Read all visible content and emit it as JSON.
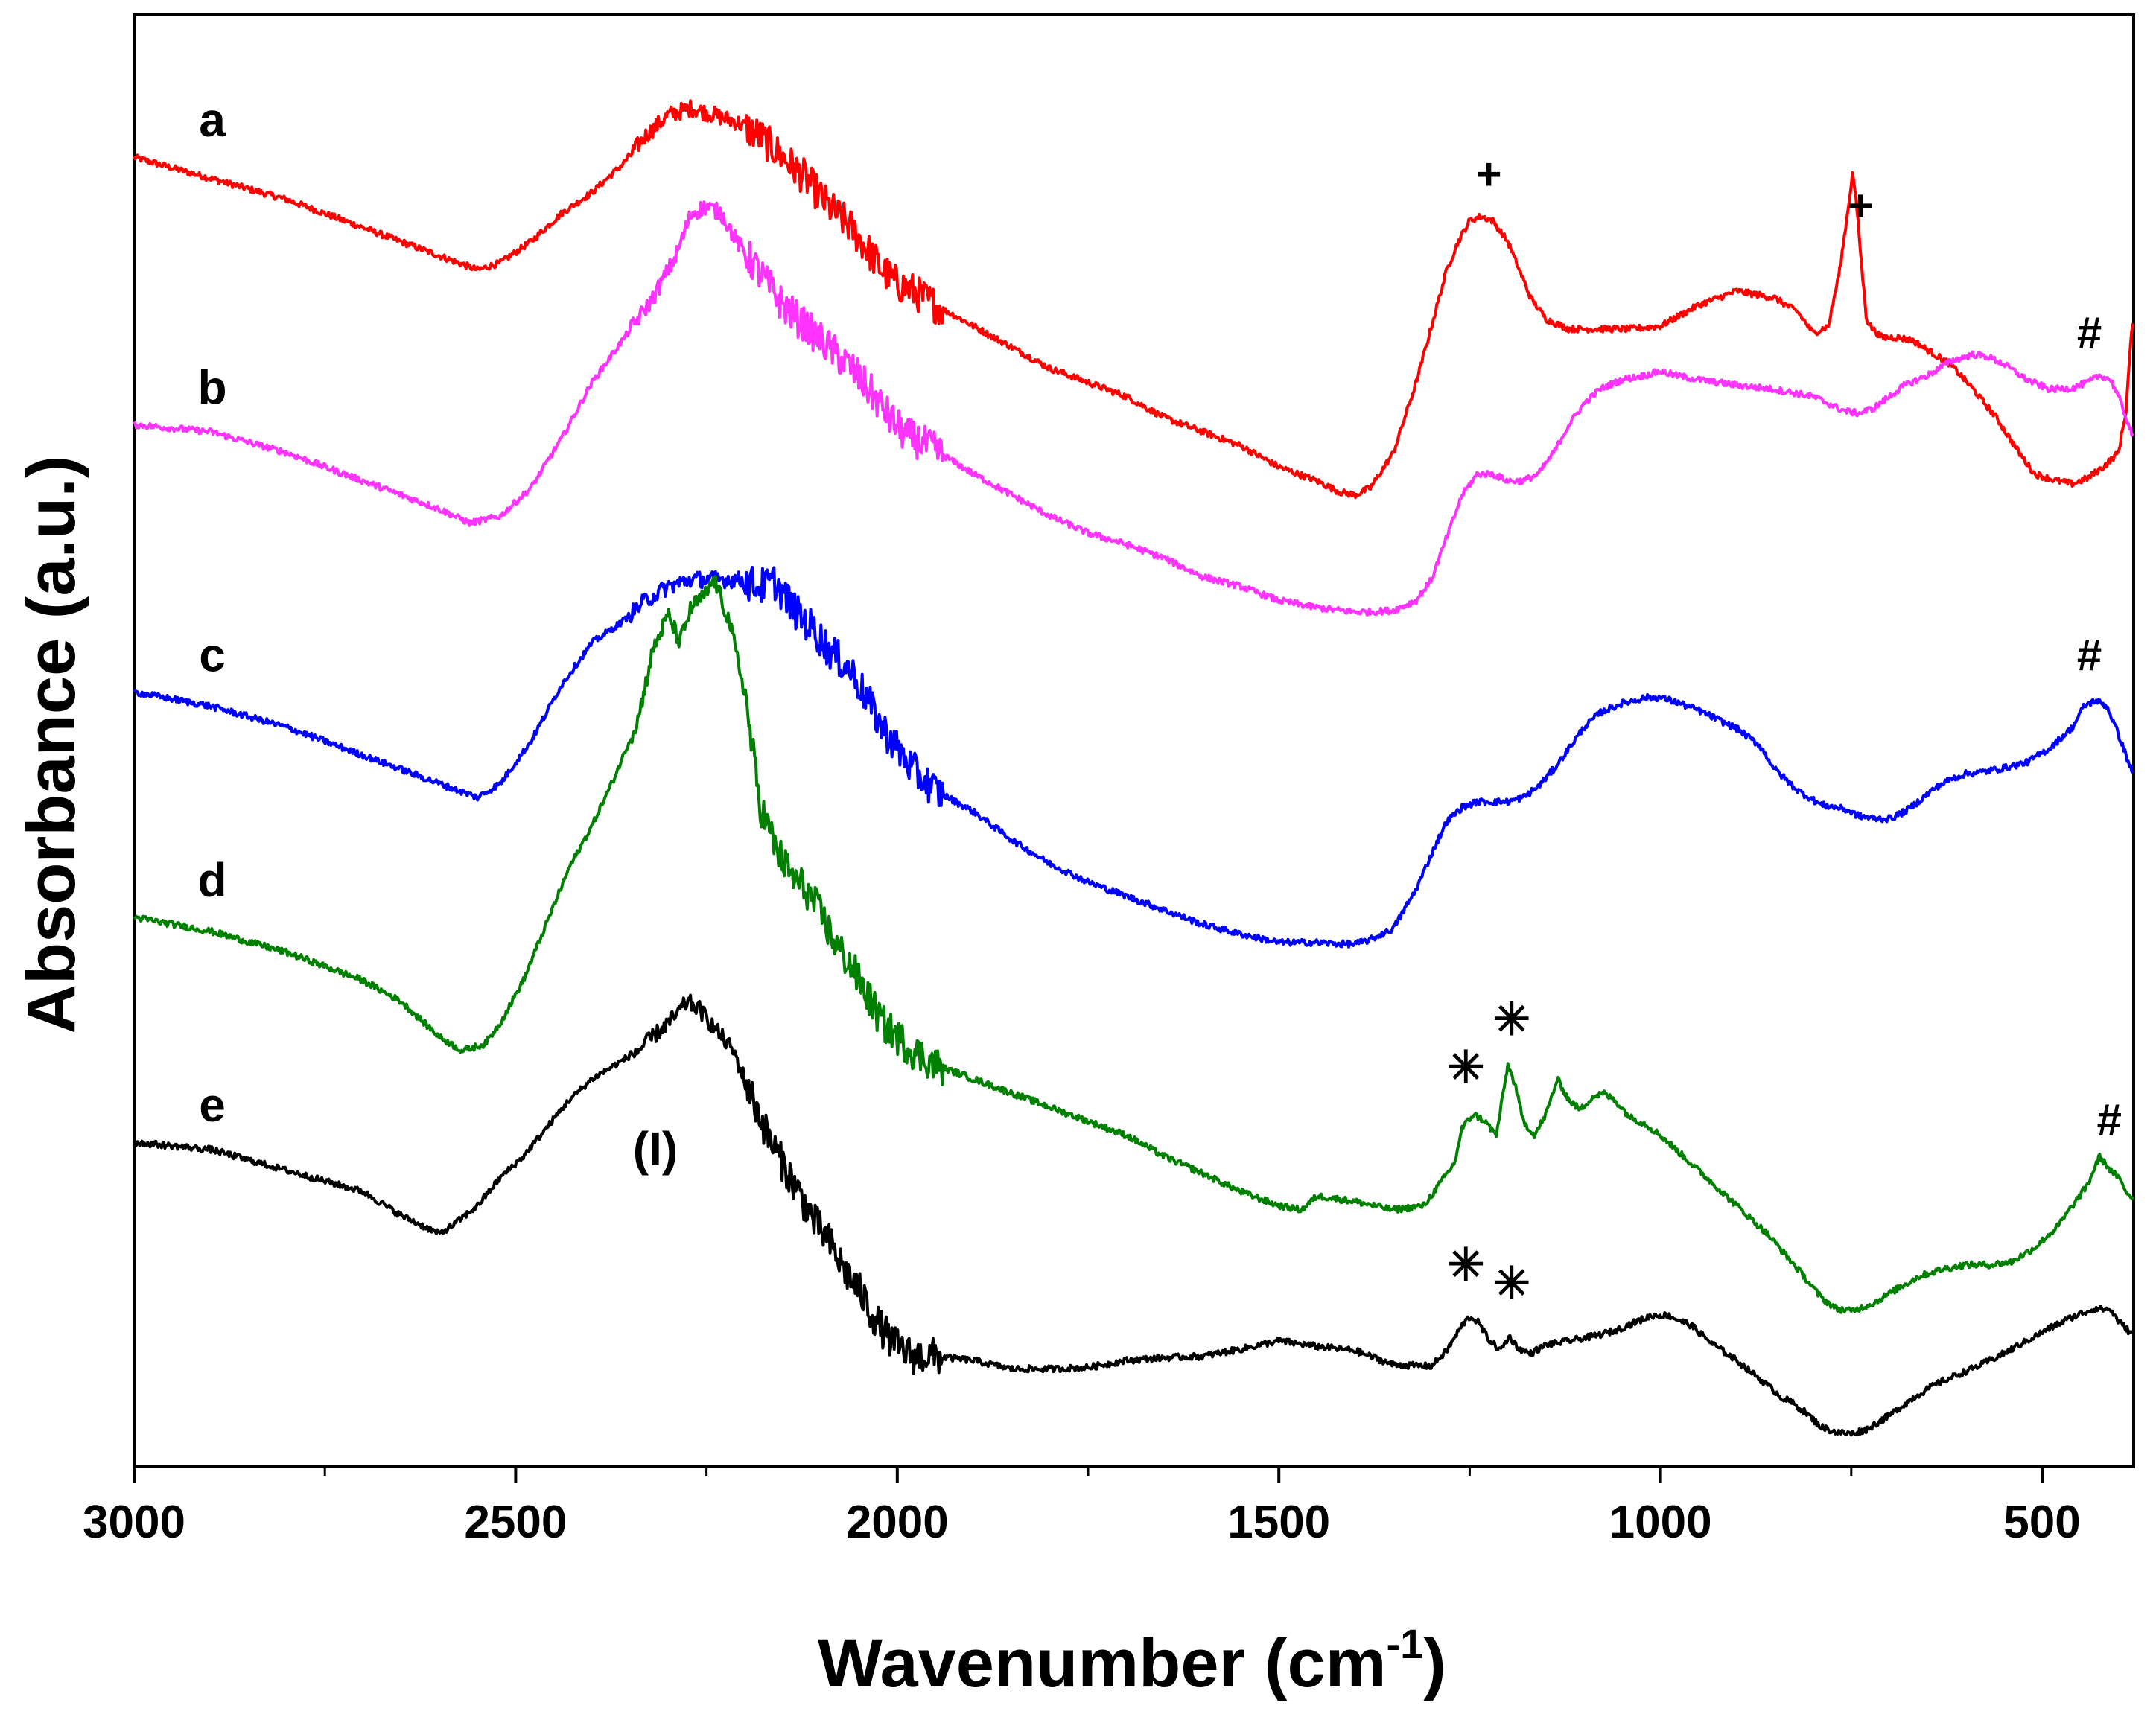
{
  "chart_data": {
    "type": "line",
    "title": "",
    "xlabel": "Wavenumber (cm",
    "xlabel_sup": "-1",
    "xlabel_close": ")",
    "ylabel": "Absorbance (a.u.)",
    "xlim": [
      3000,
      380
    ],
    "ylim": [
      0,
      100
    ],
    "xticks": [
      3000,
      2500,
      2000,
      1500,
      1000,
      500
    ],
    "yticks_shown": false,
    "legend": "none",
    "series": [
      {
        "name": "a",
        "color": "#ff0000",
        "x": [
          3000,
          2900,
          2800,
          2700,
          2600,
          2550,
          2520,
          2480,
          2440,
          2400,
          2360,
          2330,
          2300,
          2270,
          2240,
          2210,
          2180,
          2150,
          2120,
          2090,
          2060,
          2040,
          2020,
          2000,
          1980,
          1950,
          1900,
          1850,
          1800,
          1750,
          1700,
          1650,
          1600,
          1550,
          1500,
          1450,
          1420,
          1400,
          1380,
          1350,
          1320,
          1300,
          1280,
          1265,
          1250,
          1235,
          1220,
          1200,
          1185,
          1170,
          1150,
          1120,
          1080,
          1040,
          1000,
          950,
          900,
          850,
          820,
          800,
          780,
          765,
          755,
          748,
          742,
          736,
          730,
          722,
          710,
          690,
          670,
          650,
          620,
          590,
          560,
          530,
          510,
          480,
          460,
          440,
          420,
          400,
          390,
          385,
          380
        ],
        "y": [
          92,
          90.5,
          89,
          87,
          85,
          84,
          84.5,
          86,
          88,
          89.5,
          91.5,
          93.5,
          95,
          95.5,
          95,
          94.5,
          93.5,
          92,
          90.5,
          88.5,
          87,
          85.5,
          84,
          83,
          82.5,
          81.5,
          80,
          78.5,
          77,
          76,
          75,
          73.5,
          72.5,
          71.5,
          70,
          69,
          68.2,
          68,
          68.5,
          71,
          76,
          80,
          84,
          86,
          87.5,
          87.8,
          87.5,
          86,
          84,
          82,
          80.5,
          79.8,
          79.8,
          79.8,
          80,
          81.5,
          82.5,
          82,
          81,
          79.5,
          80,
          84,
          88,
          91,
          88,
          84,
          80.5,
          79.8,
          79.2,
          79.2,
          79,
          78.3,
          77.3,
          75.5,
          73.5,
          71,
          69.5,
          69,
          68.8,
          69.2,
          70,
          71,
          74,
          78,
          81
        ]
      },
      {
        "name": "b",
        "color": "#ff33ff",
        "x": [
          3000,
          2900,
          2800,
          2700,
          2600,
          2560,
          2520,
          2480,
          2440,
          2400,
          2360,
          2320,
          2290,
          2270,
          2250,
          2230,
          2210,
          2190,
          2170,
          2150,
          2120,
          2090,
          2060,
          2030,
          2010,
          1990,
          1960,
          1930,
          1900,
          1850,
          1800,
          1750,
          1700,
          1650,
          1600,
          1550,
          1500,
          1450,
          1420,
          1400,
          1380,
          1350,
          1320,
          1300,
          1280,
          1260,
          1240,
          1220,
          1200,
          1180,
          1160,
          1140,
          1120,
          1100,
          1080,
          1050,
          1020,
          1000,
          980,
          950,
          900,
          850,
          800,
          760,
          740,
          720,
          700,
          680,
          650,
          620,
          590,
          570,
          550,
          520,
          490,
          460,
          440,
          425,
          410,
          400,
          390,
          380
        ],
        "y": [
          73,
          72.5,
          71,
          69,
          67,
          66,
          66.5,
          68.5,
          72,
          76,
          79,
          82,
          85,
          88,
          88.5,
          88,
          86,
          84.5,
          83,
          81.5,
          80,
          78.5,
          77,
          75,
          73.5,
          72.3,
          71.5,
          70.5,
          69.5,
          68,
          66.5,
          65.3,
          64.5,
          63.5,
          62.2,
          61.5,
          60.5,
          60,
          59.8,
          59.7,
          59.7,
          59.8,
          60.5,
          62,
          65,
          68,
          69.5,
          69.5,
          69,
          69,
          69.5,
          71,
          73,
          74.5,
          75.5,
          76.2,
          76.5,
          76.8,
          76.5,
          76.2,
          75.8,
          75.5,
          75,
          74,
          73.8,
          74.2,
          75,
          75.8,
          76.5,
          77.5,
          78,
          77.8,
          77.3,
          76.2,
          75.5,
          75.6,
          76,
          76.5,
          76.2,
          75,
          73.5,
          72
        ]
      },
      {
        "name": "c",
        "color": "#0000ff",
        "x": [
          3000,
          2900,
          2800,
          2700,
          2600,
          2550,
          2520,
          2480,
          2440,
          2400,
          2360,
          2330,
          2300,
          2270,
          2240,
          2210,
          2180,
          2160,
          2150,
          2130,
          2110,
          2090,
          2060,
          2040,
          2020,
          2000,
          1980,
          1950,
          1900,
          1850,
          1800,
          1750,
          1700,
          1650,
          1600,
          1550,
          1500,
          1450,
          1420,
          1400,
          1380,
          1350,
          1320,
          1300,
          1280,
          1260,
          1240,
          1220,
          1200,
          1180,
          1160,
          1140,
          1120,
          1100,
          1080,
          1050,
          1020,
          1000,
          980,
          950,
          900,
          870,
          850,
          820,
          790,
          760,
          740,
          720,
          700,
          680,
          660,
          640,
          620,
          600,
          580,
          550,
          520,
          490,
          460,
          445,
          430,
          415,
          400,
          390,
          380
        ],
        "y": [
          54,
          53,
          51.5,
          49.5,
          47.5,
          46.5,
          47.5,
          50.5,
          54.5,
          57.5,
          59,
          60.5,
          61.5,
          62,
          62,
          62,
          61.5,
          61.8,
          61,
          59.5,
          58.5,
          57,
          55.5,
          53.5,
          51.5,
          50,
          48.5,
          47,
          45.5,
          43.5,
          41.8,
          40.5,
          39.5,
          38.5,
          37.5,
          36.8,
          36.2,
          36.2,
          36.1,
          36.1,
          36.4,
          37.2,
          40,
          42.5,
          44.8,
          45.8,
          46.2,
          46.2,
          46.2,
          46.5,
          47.3,
          48.5,
          50,
          51.5,
          52.5,
          53.2,
          53.6,
          53.6,
          53.3,
          52.7,
          51.4,
          50.2,
          48.5,
          47,
          46,
          45.7,
          45.2,
          45,
          45,
          45.5,
          46.3,
          47.2,
          47.8,
          48.2,
          48.3,
          48.6,
          49,
          50,
          51.5,
          53,
          53.4,
          53,
          51,
          49.5,
          48
        ]
      },
      {
        "name": "d",
        "color": "#008000",
        "x": [
          3000,
          2900,
          2800,
          2700,
          2650,
          2600,
          2570,
          2540,
          2520,
          2490,
          2460,
          2430,
          2400,
          2370,
          2340,
          2320,
          2300,
          2285,
          2270,
          2250,
          2240,
          2220,
          2200,
          2180,
          2160,
          2140,
          2120,
          2100,
          2080,
          2060,
          2040,
          2020,
          2000,
          1980,
          1950,
          1900,
          1850,
          1800,
          1750,
          1700,
          1650,
          1600,
          1550,
          1500,
          1470,
          1450,
          1400,
          1350,
          1310,
          1290,
          1270,
          1260,
          1245,
          1230,
          1215,
          1200,
          1190,
          1180,
          1165,
          1150,
          1135,
          1120,
          1105,
          1090,
          1075,
          1060,
          1040,
          1020,
          1000,
          970,
          940,
          900,
          860,
          820,
          790,
          770,
          750,
          720,
          690,
          660,
          630,
          600,
          570,
          540,
          510,
          480,
          460,
          440,
          425,
          410,
          400,
          390,
          380
        ],
        "y": [
          38,
          37,
          35.5,
          33.5,
          32,
          29.5,
          28.5,
          29,
          30.5,
          33.5,
          37.5,
          41.5,
          44.5,
          48,
          52,
          57,
          59.5,
          57.5,
          60,
          61,
          62,
          59,
          54,
          46,
          43,
          41,
          40,
          38.2,
          36,
          34.5,
          32.5,
          30.5,
          29.5,
          28.5,
          27.5,
          26.5,
          25.5,
          24.5,
          23.5,
          22.5,
          21,
          19.8,
          18.5,
          17.5,
          17.2,
          18.2,
          17.8,
          17.2,
          17.5,
          19,
          20.5,
          23,
          24,
          23.5,
          22.5,
          27.5,
          26,
          23.5,
          22.5,
          24,
          26.5,
          25,
          24.3,
          25.2,
          25.5,
          25,
          23.8,
          23.3,
          22.5,
          21,
          19.5,
          17.5,
          15.5,
          13,
          11,
          10.2,
          10,
          10.6,
          11.6,
          12.5,
          13,
          13.3,
          13.3,
          13.5,
          14.5,
          16,
          17.5,
          19,
          21,
          20,
          19.5,
          18.5,
          18
        ]
      },
      {
        "name": "e",
        "color": "#000000",
        "x": [
          3000,
          2900,
          2800,
          2700,
          2650,
          2600,
          2580,
          2550,
          2520,
          2490,
          2460,
          2430,
          2400,
          2370,
          2340,
          2310,
          2290,
          2275,
          2260,
          2245,
          2230,
          2215,
          2200,
          2185,
          2170,
          2150,
          2130,
          2110,
          2090,
          2070,
          2050,
          2030,
          2010,
          2000,
          1980,
          1950,
          1900,
          1850,
          1800,
          1750,
          1700,
          1650,
          1600,
          1550,
          1500,
          1450,
          1400,
          1350,
          1300,
          1280,
          1260,
          1250,
          1240,
          1225,
          1210,
          1198,
          1185,
          1170,
          1150,
          1120,
          1090,
          1060,
          1030,
          1010,
          990,
          960,
          930,
          900,
          870,
          850,
          840,
          830,
          810,
          790,
          770,
          750,
          730,
          700,
          670,
          640,
          610,
          580,
          550,
          520,
          490,
          460,
          430,
          410,
          400,
          390,
          385,
          380
        ],
        "y": [
          22,
          21.5,
          20,
          18.5,
          16.8,
          15.5,
          16.2,
          17.5,
          19.5,
          21,
          23,
          25,
          26.5,
          27.5,
          28.5,
          30,
          31,
          32,
          31.5,
          30.5,
          29.5,
          28.5,
          26.5,
          24.5,
          22.5,
          20.5,
          18.5,
          16.5,
          15,
          13,
          11.5,
          9.5,
          8,
          7.5,
          6.8,
          6.8,
          6.5,
          5.9,
          5.9,
          6,
          6.5,
          6.7,
          6.8,
          7.3,
          7.9,
          7.5,
          7.2,
          6.2,
          6.1,
          7.2,
          9,
          9.6,
          9.3,
          8,
          7.2,
          8.2,
          7.3,
          7,
          7.6,
          7.9,
          8.2,
          8.6,
          9.3,
          9.7,
          9.7,
          9,
          7.6,
          6.5,
          5.2,
          4.3,
          3.8,
          3.6,
          2.8,
          1.8,
          1.4,
          1.3,
          1.6,
          2.6,
          3.8,
          4.8,
          5.5,
          6.2,
          7,
          7.9,
          8.8,
          9.6,
          10.2,
          10.1,
          9.3,
          8.8,
          8.5,
          8.3
        ]
      }
    ],
    "curve_labels": [
      "a",
      "b",
      "c",
      "d",
      "e"
    ],
    "band_label": "(I)",
    "annotations": [
      {
        "symbol": "+",
        "series": "a",
        "x": 1225
      },
      {
        "symbol": "+",
        "series": "a",
        "x": 738
      },
      {
        "symbol": "#",
        "series": "b",
        "x": 438
      },
      {
        "symbol": "#",
        "series": "c",
        "x": 438
      },
      {
        "symbol": "#",
        "series": "d",
        "x": 412
      },
      {
        "symbol": "✳",
        "series": "d",
        "x": 1255
      },
      {
        "symbol": "✳",
        "series": "d",
        "x": 1195
      },
      {
        "symbol": "✳",
        "series": "e",
        "x": 1255
      },
      {
        "symbol": "✳",
        "series": "e",
        "x": 1195
      }
    ]
  }
}
